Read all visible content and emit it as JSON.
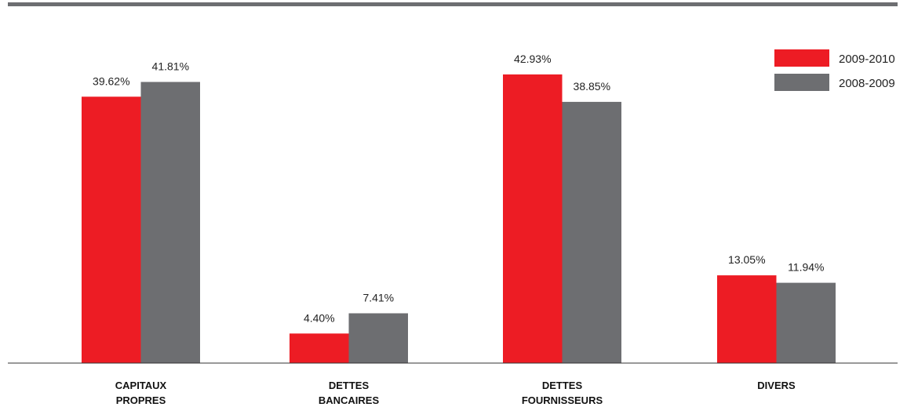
{
  "chart_data": {
    "type": "bar",
    "categories": [
      [
        "CAPITAUX",
        "PROPRES"
      ],
      [
        "DETTES",
        "BANCAIRES"
      ],
      [
        "DETTES",
        "FOURNISSEURS"
      ],
      [
        "DIVERS"
      ]
    ],
    "series": [
      {
        "name": "2009-2010",
        "color": "#ed1c24",
        "values": [
          39.62,
          4.4,
          42.93,
          13.05
        ],
        "labels": [
          "39.62%",
          "4.40%",
          "42.93%",
          "13.05%"
        ]
      },
      {
        "name": "2008-2009",
        "color": "#6d6e71",
        "values": [
          41.81,
          7.41,
          38.85,
          11.94
        ],
        "labels": [
          "41.81%",
          "7.41%",
          "38.85%",
          "11.94%"
        ]
      }
    ],
    "ylim": [
      0,
      43.5
    ],
    "grid": false,
    "legend": "top-right",
    "title": "",
    "xlabel": "",
    "ylabel": ""
  }
}
